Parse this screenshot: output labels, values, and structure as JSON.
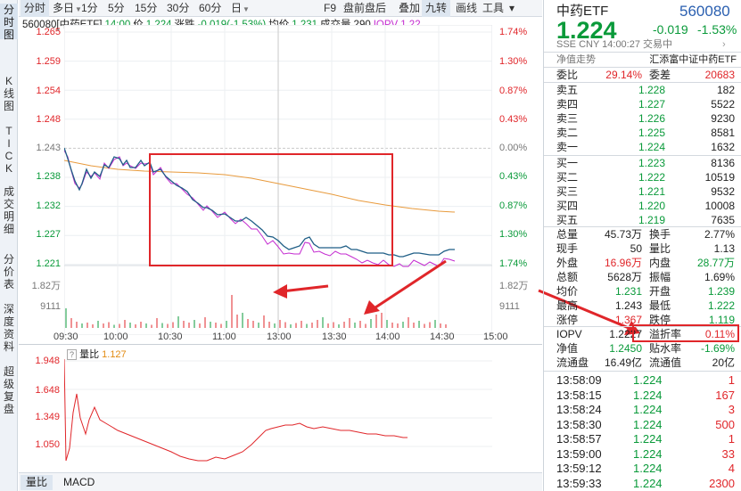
{
  "left_tabs": [
    "分时图",
    "K线图",
    "TICK",
    "成交明细",
    "分价表",
    "深度资料",
    "超级复盘"
  ],
  "top_tabs": [
    {
      "label": "分时",
      "active": true
    },
    {
      "label": "多日",
      "dd": true
    },
    {
      "label": "1分"
    },
    {
      "label": "5分"
    },
    {
      "label": "15分"
    },
    {
      "label": "30分"
    },
    {
      "label": "60分"
    },
    {
      "label": "日",
      "dd": true
    },
    {
      "label": "F9"
    },
    {
      "label": "盘前盘后"
    },
    {
      "label": "叠加"
    },
    {
      "label": "九转",
      "active": true
    },
    {
      "label": "画线"
    },
    {
      "label": "工具"
    },
    {
      "label": "▾"
    }
  ],
  "info": {
    "code": "560080[中药ETF]",
    "time": "14:00",
    "price_label": "价",
    "price": "1.224",
    "chg_label": "涨跌",
    "chg": "-0.019(-1.53%)",
    "avg_label": "均价",
    "avg": "1.231",
    "vol_label": "成交量",
    "vol": "290",
    "iopv_label": "IOPV",
    "iopv": "1.22..."
  },
  "price_axis": [
    "1.265",
    "1.259",
    "1.254",
    "1.248",
    "1.243",
    "1.238",
    "1.232",
    "1.227",
    "1.221"
  ],
  "pct_axis": [
    "1.74%",
    "1.30%",
    "0.87%",
    "0.43%",
    "0.00%",
    "0.43%",
    "0.87%",
    "1.30%",
    "1.74%"
  ],
  "vol_axis": [
    "1.82万",
    "9111"
  ],
  "time_axis": [
    "09:30",
    "10:00",
    "10:30",
    "11:00",
    "13:00",
    "13:30",
    "14:00",
    "14:30",
    "15:00"
  ],
  "sub": {
    "help": "?",
    "title": "量比",
    "value": "1.127",
    "axis": [
      "1.948",
      "1.648",
      "1.349",
      "1.050"
    ]
  },
  "bottom_tabs": [
    "量比",
    "MACD"
  ],
  "right": {
    "name": "中药ETF",
    "code": "560080",
    "price": "1.224",
    "chg": "-0.019",
    "pct": "-1.53%",
    "sub_info": "SSE CNY  14:00:27  交易中",
    "trend_label": "净值走势",
    "fund_name": "汇添富中证中药ETF",
    "ratio_label": "委比",
    "ratio": "29.14%",
    "diff_label": "委差",
    "diff": "20683",
    "asks": [
      {
        "l": "卖五",
        "p": "1.228",
        "v": "182"
      },
      {
        "l": "卖四",
        "p": "1.227",
        "v": "5522"
      },
      {
        "l": "卖三",
        "p": "1.226",
        "v": "9230"
      },
      {
        "l": "卖二",
        "p": "1.225",
        "v": "8581"
      },
      {
        "l": "卖一",
        "p": "1.224",
        "v": "1632"
      }
    ],
    "bids": [
      {
        "l": "买一",
        "p": "1.223",
        "v": "8136"
      },
      {
        "l": "买二",
        "p": "1.222",
        "v": "10519"
      },
      {
        "l": "买三",
        "p": "1.221",
        "v": "9532"
      },
      {
        "l": "买四",
        "p": "1.220",
        "v": "10008"
      },
      {
        "l": "买五",
        "p": "1.219",
        "v": "7635"
      }
    ],
    "stats": [
      {
        "l1": "总量",
        "v1": "45.73万",
        "c1": "",
        "l2": "换手",
        "v2": "2.77%",
        "c2": ""
      },
      {
        "l1": "现手",
        "v1": "50",
        "c1": "",
        "l2": "量比",
        "v2": "1.13",
        "c2": ""
      },
      {
        "l1": "外盘",
        "v1": "16.96万",
        "c1": "red",
        "l2": "内盘",
        "v2": "28.77万",
        "c2": "green"
      },
      {
        "l1": "总额",
        "v1": "5628万",
        "c1": "",
        "l2": "振幅",
        "v2": "1.69%",
        "c2": ""
      },
      {
        "l1": "均价",
        "v1": "1.231",
        "c1": "green",
        "l2": "开盘",
        "v2": "1.239",
        "c2": "green"
      },
      {
        "l1": "最高",
        "v1": "1.243",
        "c1": "",
        "l2": "最低",
        "v2": "1.222",
        "c2": "green"
      },
      {
        "l1": "涨停",
        "v1": "1.367",
        "c1": "red",
        "l2": "跌停",
        "v2": "1.119",
        "c2": "green"
      }
    ],
    "iopv_label": "IOPV",
    "iopv": "1.2227",
    "premium_label": "溢折率",
    "premium": "0.11%",
    "nav_label": "净值",
    "nav": "1.2450",
    "water_label": "贴水率",
    "water": "-1.69%",
    "float_label": "流通盘",
    "float": "16.49亿",
    "fval_label": "流通值",
    "fval": "20亿",
    "ticks": [
      {
        "t": "13:58:09",
        "p": "1.224",
        "v": "1",
        "c": "red"
      },
      {
        "t": "13:58:15",
        "p": "1.224",
        "v": "167",
        "c": "red"
      },
      {
        "t": "13:58:24",
        "p": "1.224",
        "v": "3",
        "c": "red"
      },
      {
        "t": "13:58:30",
        "p": "1.224",
        "v": "500",
        "c": "red"
      },
      {
        "t": "13:58:57",
        "p": "1.224",
        "v": "1",
        "c": "red"
      },
      {
        "t": "13:59:00",
        "p": "1.224",
        "v": "33",
        "c": "red"
      },
      {
        "t": "13:59:12",
        "p": "1.224",
        "v": "4",
        "c": "red"
      },
      {
        "t": "13:59:33",
        "p": "1.224",
        "v": "2300",
        "c": "red"
      }
    ]
  },
  "colors": {
    "up": "#e0262a",
    "down": "#0a9a3a",
    "price_line": "#1f5e86",
    "iopv_line": "#c42bd0",
    "avg_line": "#e89a3c",
    "volume_ratio_line": "#e0262a"
  }
}
